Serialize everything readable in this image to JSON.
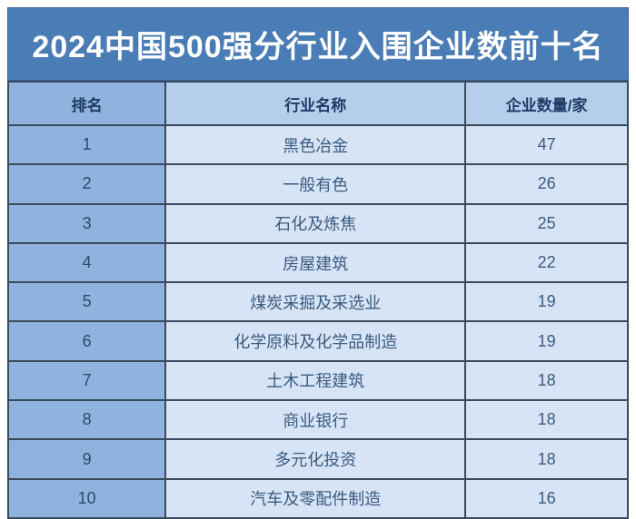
{
  "title": "2024中国500强分行业入围企业数前十名",
  "colors": {
    "title_bg": "#4A7CB5",
    "rank_col_bg": "#8FB3DE",
    "header_bg": "#B4CEEC",
    "cell_bg": "#D7E4F5",
    "border": "#3A4A5A",
    "title_text": "#FFFFFF",
    "header_text": "#1E3B66",
    "cell_text": "#3A5B80"
  },
  "chart_data": {
    "type": "table",
    "title": "2024中国500强分行业入围企业数前十名",
    "columns": [
      "排名",
      "行业名称",
      "企业数量/家"
    ],
    "rows": [
      [
        "1",
        "黑色冶金",
        "47"
      ],
      [
        "2",
        "一般有色",
        "26"
      ],
      [
        "3",
        "石化及炼焦",
        "25"
      ],
      [
        "4",
        "房屋建筑",
        "22"
      ],
      [
        "5",
        "煤炭采掘及采选业",
        "19"
      ],
      [
        "6",
        "化学原料及化学品制造",
        "19"
      ],
      [
        "7",
        "土木工程建筑",
        "18"
      ],
      [
        "8",
        "商业银行",
        "18"
      ],
      [
        "9",
        "多元化投资",
        "18"
      ],
      [
        "10",
        "汽车及零配件制造",
        "16"
      ]
    ],
    "categories": [
      "黑色冶金",
      "一般有色",
      "石化及炼焦",
      "房屋建筑",
      "煤炭采掘及采选业",
      "化学原料及化学品制造",
      "土木工程建筑",
      "商业银行",
      "多元化投资",
      "汽车及零配件制造"
    ],
    "values": [
      47,
      26,
      25,
      22,
      19,
      19,
      18,
      18,
      18,
      16
    ],
    "xlabel": "行业名称",
    "ylabel": "企业数量/家"
  }
}
